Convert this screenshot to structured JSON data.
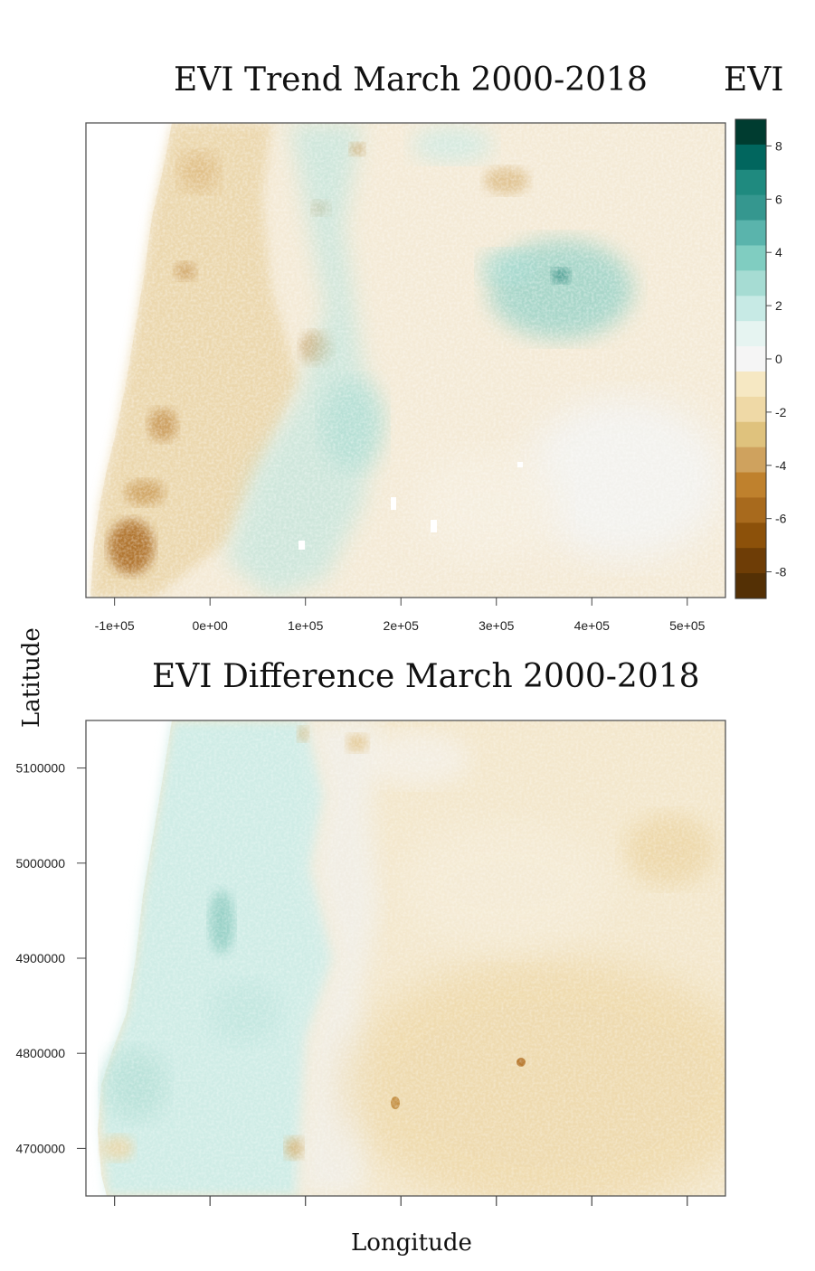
{
  "figure": {
    "ylabel": "Latitude",
    "xlabel": "Longitude"
  },
  "chart_data": [
    {
      "type": "heatmap",
      "title": "EVI Trend March 2000-2018",
      "x_ticks": [
        "-1e+05",
        "0e+00",
        "1e+05",
        "2e+05",
        "3e+05",
        "4e+05",
        "5e+05"
      ],
      "x_tick_values": [
        -100000,
        0,
        100000,
        200000,
        300000,
        400000,
        500000
      ],
      "xlim": [
        -130000,
        540000
      ],
      "colorbar": {
        "title": "EVI",
        "ticks": [
          "8",
          "6",
          "4",
          "2",
          "0",
          "-2",
          "-4",
          "-6",
          "-8"
        ],
        "tick_values": [
          8,
          6,
          4,
          2,
          0,
          -2,
          -4,
          -6,
          -8
        ],
        "range": [
          -9,
          9
        ],
        "colors": [
          "#003c30",
          "#01665e",
          "#1f8a7f",
          "#35978f",
          "#5ab4ac",
          "#80cdc1",
          "#a6dcd3",
          "#c7eae5",
          "#e6f4f1",
          "#f5f5f5",
          "#f6e8c3",
          "#efd9a6",
          "#dfc27d",
          "#cfa25e",
          "#bf812d",
          "#a86a1d",
          "#8c510a",
          "#6e3d06",
          "#543005"
        ]
      }
    },
    {
      "type": "heatmap",
      "title": "EVI Difference March 2000-2018",
      "y_ticks": [
        "5100000",
        "5000000",
        "4900000",
        "4800000",
        "4700000"
      ],
      "y_tick_values": [
        5100000,
        5000000,
        4900000,
        4800000,
        4700000
      ],
      "ylim": [
        4650000,
        5150000
      ],
      "x_tick_values": [
        -100000,
        0,
        100000,
        200000,
        300000,
        400000,
        500000
      ],
      "xlim": [
        -130000,
        540000
      ]
    }
  ]
}
